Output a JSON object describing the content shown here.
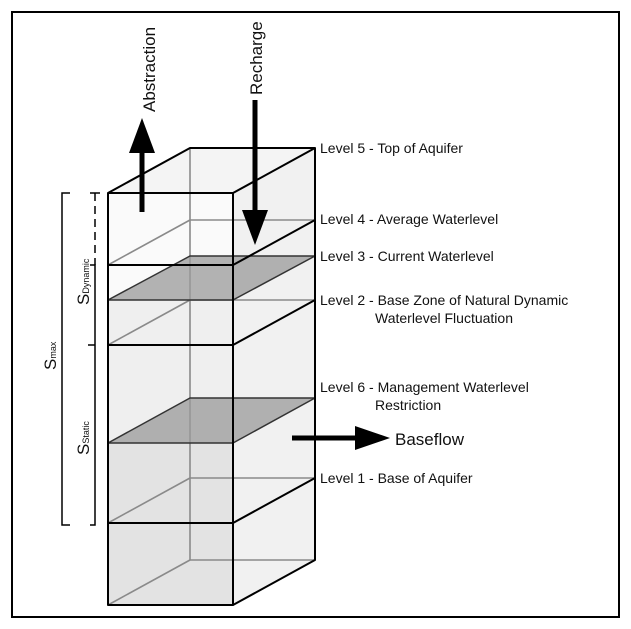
{
  "arrows": {
    "abstraction": "Abstraction",
    "recharge": "Recharge",
    "baseflow": "Baseflow"
  },
  "levels": [
    "Level 5 - Top of Aquifer",
    "Level 4 - Average Waterlevel",
    "Level 3 - Current Waterlevel",
    "Level 2 - Base Zone of Natural Dynamic",
    "Waterlevel Fluctuation",
    "Level 6 - Management Waterlevel",
    "Restriction",
    "Level 1 - Base of Aquifer"
  ],
  "storage": {
    "max": {
      "symbol": "S",
      "sub": "max"
    },
    "dynamic": {
      "symbol": "S",
      "sub": "Dynamic"
    },
    "static": {
      "symbol": "S",
      "sub": "Static"
    }
  }
}
